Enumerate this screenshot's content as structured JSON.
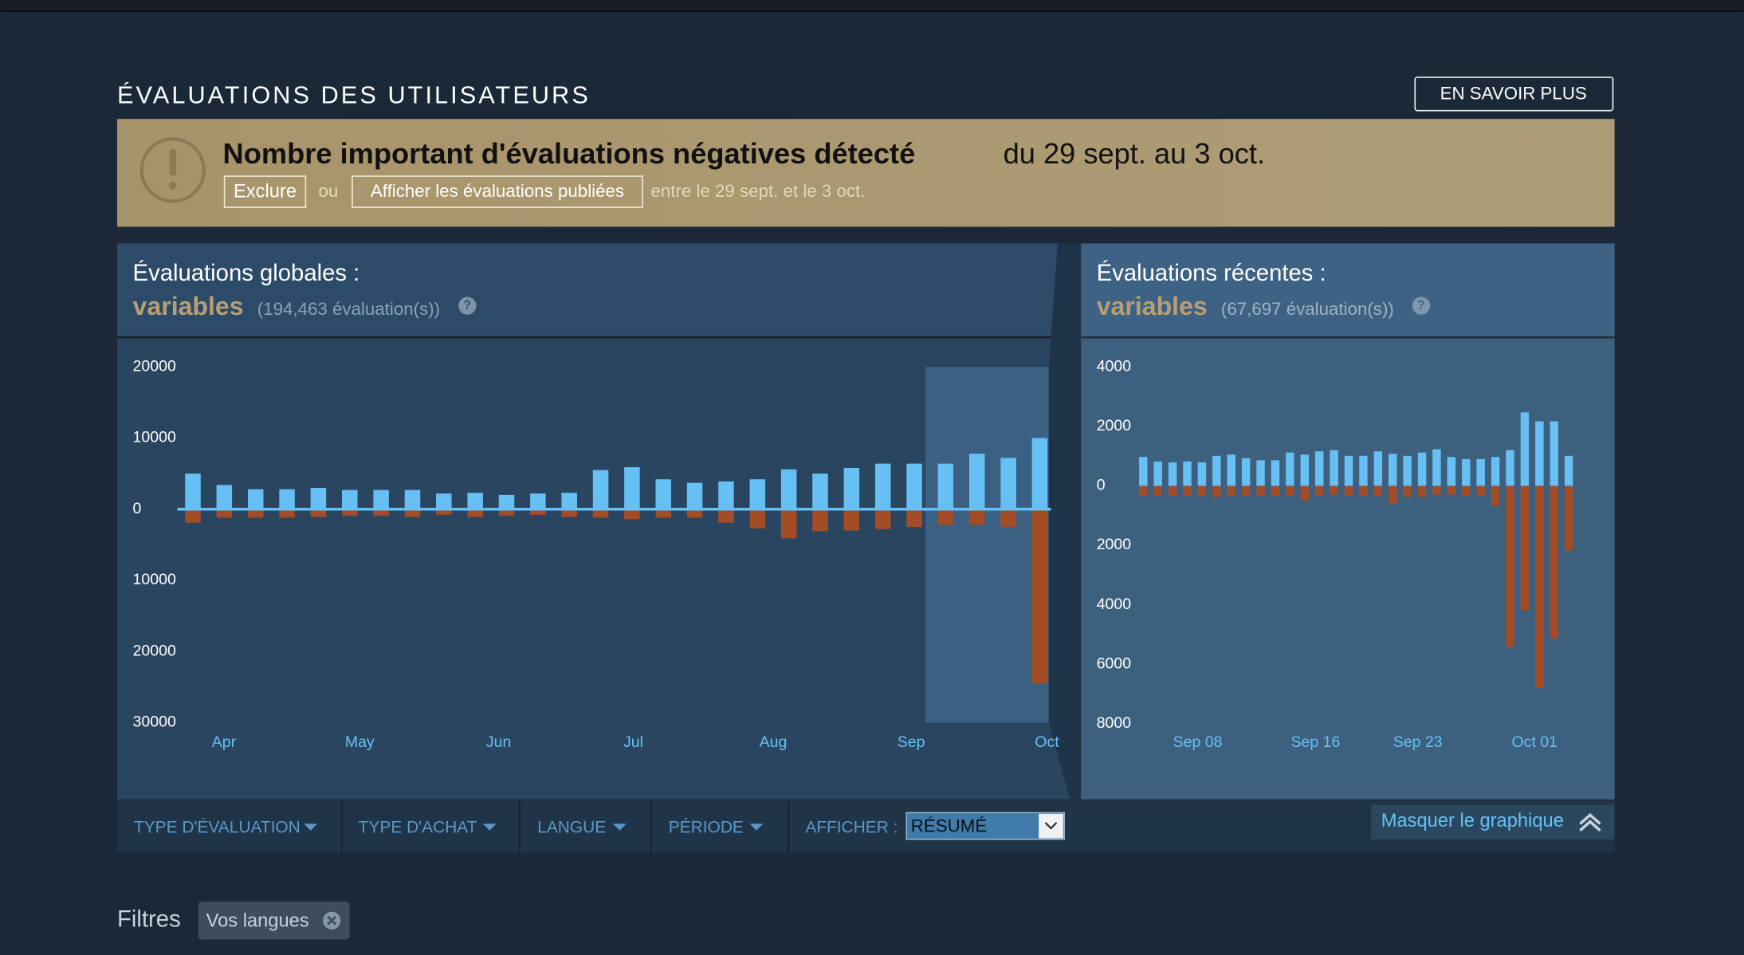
{
  "header": {
    "title": "ÉVALUATIONS DES UTILISATEURS",
    "button": "EN SAVOIR PLUS"
  },
  "banner": {
    "title": "Nombre important d'évaluations négatives détecté",
    "range": "du 29 sept. au 3 oct.",
    "exclude": "Exclure",
    "or": "ou",
    "show": "Afficher les évaluations publiées",
    "note": "entre le 29 sept. et le 3 oct."
  },
  "chart_data": [
    {
      "type": "bar",
      "title": "Évaluations globales :",
      "rating": "variables",
      "count": "(194,463 évaluation(s))",
      "help": "?",
      "x": [
        0,
        1,
        2,
        3,
        4,
        5,
        6,
        7,
        8,
        9,
        10,
        11,
        12,
        13,
        14,
        15,
        16,
        17,
        18,
        19,
        20,
        21,
        22,
        23,
        24,
        25,
        26,
        27
      ],
      "xlim": [
        -0.5,
        27.5
      ],
      "xticks": [
        {
          "value": 0.99,
          "label": "Apr"
        },
        {
          "value": 5.32,
          "label": "May"
        },
        {
          "value": 9.75,
          "label": "Jun"
        },
        {
          "value": 14.04,
          "label": "Jul"
        },
        {
          "value": 18.5,
          "label": "Aug"
        },
        {
          "value": 22.9,
          "label": "Sep"
        },
        {
          "value": 27.23,
          "label": "Oct"
        }
      ],
      "ylim": [
        -30000,
        20000
      ],
      "yticks": [
        20000,
        10000,
        0,
        {
          "value": -10000,
          "label": "10000"
        },
        {
          "value": -20000,
          "label": "20000"
        },
        {
          "value": -30000,
          "label": "30000"
        }
      ],
      "axis_line": true,
      "series": [
        {
          "color": "#66c0f4",
          "values": [
            5000,
            3400,
            2800,
            2800,
            3000,
            2700,
            2700,
            2700,
            2200,
            2300,
            2000,
            2200,
            2300,
            5500,
            5900,
            4200,
            3700,
            3900,
            4200,
            5600,
            5000,
            5800,
            6400,
            6400,
            6400,
            7800,
            7200,
            10000
          ]
        },
        {
          "color": "#a34c25",
          "values": [
            -1900,
            -1200,
            -1200,
            -1200,
            -1100,
            -900,
            -900,
            -1100,
            -800,
            -1100,
            -900,
            -800,
            -1100,
            -1200,
            -1400,
            -1200,
            -1200,
            -1900,
            -2700,
            -4100,
            -3100,
            -3000,
            -2800,
            -2500,
            -2200,
            -2200,
            -2500,
            -24500
          ]
        }
      ]
    },
    {
      "type": "bar",
      "title": "Évaluations récentes :",
      "rating": "variables",
      "count": "(67,697 évaluation(s))",
      "help": "?",
      "x": [
        0,
        1,
        2,
        3,
        4,
        5,
        6,
        7,
        8,
        9,
        10,
        11,
        12,
        13,
        14,
        15,
        16,
        17,
        18,
        19,
        20,
        21,
        22,
        23,
        24,
        25,
        26,
        27,
        28,
        29
      ],
      "xlim": [
        -0.5,
        29.5
      ],
      "xticks": [
        {
          "value": 3.71,
          "label": "Sep 08"
        },
        {
          "value": 11.74,
          "label": "Sep 16"
        },
        {
          "value": 18.71,
          "label": "Sep 23"
        },
        {
          "value": 26.67,
          "label": "Oct 01"
        }
      ],
      "ylim": [
        -8000,
        4000
      ],
      "yticks": [
        4000,
        2000,
        0,
        {
          "value": -2000,
          "label": "2000"
        },
        {
          "value": -4000,
          "label": "4000"
        },
        {
          "value": -6000,
          "label": "6000"
        },
        {
          "value": -8000,
          "label": "8000"
        }
      ],
      "axis_line": false,
      "series": [
        {
          "color": "#66c0f4",
          "values": [
            970,
            820,
            790,
            820,
            790,
            1010,
            1050,
            930,
            860,
            860,
            1120,
            1050,
            1160,
            1200,
            1010,
            1010,
            1160,
            1080,
            1010,
            1120,
            1230,
            970,
            900,
            900,
            970,
            1200,
            2470,
            2170,
            2170,
            1010
          ]
        },
        {
          "color": "#a34c25",
          "values": [
            -340,
            -340,
            -340,
            -340,
            -340,
            -370,
            -340,
            -340,
            -340,
            -340,
            -340,
            -490,
            -340,
            -300,
            -340,
            -340,
            -340,
            -600,
            -370,
            -370,
            -300,
            -300,
            -340,
            -340,
            -670,
            -5420,
            -4190,
            -6800,
            -5120,
            -2170
          ]
        }
      ]
    }
  ],
  "filter_bar": {
    "review_type": "TYPE D'ÉVALUATION",
    "purchase_type": "TYPE D'ACHAT",
    "language": "LANGUE",
    "period": "PÉRIODE",
    "display": "AFFICHER :",
    "display_value": "RÉSUMÉ",
    "hide": "Masquer le graphique"
  },
  "filters": {
    "label": "Filtres",
    "chip": "Vos langues"
  }
}
